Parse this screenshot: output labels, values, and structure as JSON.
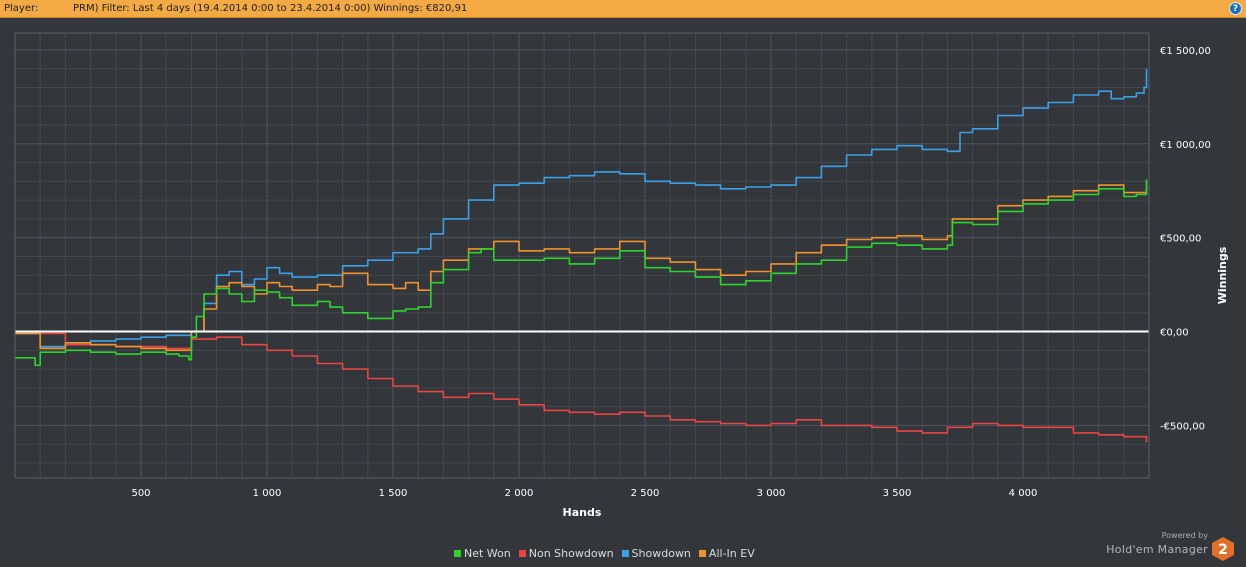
{
  "header": {
    "player_label": "Player:",
    "filter_text": "PRM) Filter: Last 4 days (19.4.2014 0:00 to 23.4.2014 0:00) Winnings: €820,91",
    "help_label": "?"
  },
  "branding": {
    "powered_by": "Powered by",
    "product_name": "Hold'em Manager",
    "logo_digit": "2"
  },
  "colors": {
    "background": "#33373c",
    "header": "#f3a944",
    "grid": "#50555b",
    "zero_line": "#ffffff"
  },
  "chart_data": {
    "type": "line",
    "title": "",
    "xlabel": "Hands",
    "ylabel": "Winnings",
    "xlim": [
      0,
      4500
    ],
    "ylim": [
      -780,
      1590
    ],
    "grid": true,
    "legend_position": "bottom-center",
    "x_ticks": [
      500,
      1000,
      1500,
      2000,
      2500,
      3000,
      3500,
      4000
    ],
    "x_tick_labels": [
      "500",
      "1 000",
      "1 500",
      "2 000",
      "2 500",
      "3 000",
      "3 500",
      "4 000"
    ],
    "y_ticks": [
      1500,
      1000,
      500,
      0,
      -500
    ],
    "y_tick_labels": [
      "€1 500,00",
      "€1 000,00",
      "€500,00",
      "€0,00",
      "-€500,00"
    ],
    "series": [
      {
        "name": "Net Won",
        "color": "#2ed42e",
        "x": [
          0,
          80,
          100,
          200,
          300,
          400,
          500,
          600,
          650,
          690,
          700,
          720,
          750,
          800,
          850,
          900,
          950,
          1000,
          1050,
          1100,
          1200,
          1250,
          1300,
          1400,
          1500,
          1550,
          1600,
          1650,
          1700,
          1800,
          1850,
          1900,
          2000,
          2100,
          2200,
          2300,
          2400,
          2500,
          2600,
          2700,
          2800,
          2900,
          3000,
          3100,
          3200,
          3300,
          3400,
          3500,
          3600,
          3700,
          3720,
          3800,
          3900,
          4000,
          4100,
          4200,
          4300,
          4400,
          4450,
          4490
        ],
        "y": [
          -140,
          -180,
          -110,
          -100,
          -110,
          -120,
          -110,
          -120,
          -130,
          -150,
          -30,
          80,
          200,
          230,
          200,
          160,
          220,
          210,
          180,
          140,
          160,
          130,
          100,
          70,
          110,
          120,
          130,
          260,
          330,
          420,
          440,
          380,
          380,
          390,
          360,
          390,
          430,
          340,
          320,
          290,
          250,
          270,
          310,
          360,
          380,
          450,
          470,
          460,
          440,
          460,
          580,
          570,
          640,
          680,
          700,
          730,
          760,
          720,
          730,
          810
        ]
      },
      {
        "name": "Non Showdown",
        "color": "#e84545",
        "x": [
          0,
          200,
          400,
          600,
          700,
          800,
          900,
          1000,
          1100,
          1200,
          1300,
          1400,
          1500,
          1600,
          1700,
          1800,
          1900,
          2000,
          2100,
          2200,
          2300,
          2400,
          2500,
          2600,
          2700,
          2800,
          2900,
          3000,
          3100,
          3200,
          3300,
          3400,
          3500,
          3600,
          3700,
          3800,
          3900,
          4000,
          4100,
          4200,
          4300,
          4400,
          4490
        ],
        "y": [
          -10,
          -70,
          -80,
          -90,
          -40,
          -30,
          -70,
          -100,
          -130,
          -170,
          -200,
          -250,
          -290,
          -320,
          -350,
          -330,
          -360,
          -390,
          -420,
          -430,
          -440,
          -430,
          -450,
          -470,
          -480,
          -490,
          -500,
          -490,
          -470,
          -500,
          -500,
          -510,
          -530,
          -540,
          -510,
          -490,
          -500,
          -510,
          -510,
          -540,
          -550,
          -560,
          -590
        ]
      },
      {
        "name": "Showdown",
        "color": "#3ba0e6",
        "x": [
          0,
          100,
          200,
          300,
          400,
          500,
          600,
          700,
          750,
          800,
          850,
          900,
          950,
          1000,
          1050,
          1100,
          1200,
          1300,
          1400,
          1500,
          1600,
          1650,
          1700,
          1800,
          1900,
          2000,
          2100,
          2200,
          2300,
          2400,
          2500,
          2600,
          2700,
          2800,
          2900,
          3000,
          3100,
          3200,
          3300,
          3400,
          3500,
          3600,
          3700,
          3750,
          3800,
          3900,
          4000,
          4100,
          4200,
          4300,
          4350,
          4400,
          4450,
          4480,
          4490
        ],
        "y": [
          -10,
          -80,
          -60,
          -50,
          -40,
          -30,
          -20,
          0,
          150,
          300,
          320,
          250,
          280,
          340,
          310,
          290,
          300,
          350,
          380,
          420,
          440,
          520,
          600,
          700,
          780,
          790,
          820,
          830,
          850,
          840,
          800,
          790,
          780,
          760,
          770,
          780,
          820,
          880,
          940,
          970,
          990,
          970,
          960,
          1060,
          1080,
          1150,
          1190,
          1220,
          1260,
          1280,
          1240,
          1250,
          1270,
          1300,
          1400
        ]
      },
      {
        "name": "All-In EV",
        "color": "#f0922e",
        "x": [
          0,
          100,
          200,
          300,
          400,
          500,
          600,
          690,
          700,
          750,
          800,
          850,
          900,
          950,
          1000,
          1050,
          1100,
          1200,
          1250,
          1300,
          1400,
          1500,
          1550,
          1600,
          1650,
          1700,
          1800,
          1900,
          2000,
          2100,
          2200,
          2300,
          2400,
          2500,
          2600,
          2700,
          2800,
          2900,
          3000,
          3100,
          3200,
          3300,
          3400,
          3500,
          3600,
          3700,
          3720,
          3800,
          3900,
          4000,
          4100,
          4200,
          4300,
          4400,
          4450,
          4490
        ],
        "y": [
          -10,
          -90,
          -60,
          -70,
          -80,
          -90,
          -100,
          -100,
          0,
          120,
          240,
          260,
          240,
          200,
          260,
          240,
          220,
          250,
          240,
          310,
          250,
          230,
          260,
          220,
          320,
          380,
          440,
          480,
          430,
          440,
          420,
          440,
          480,
          390,
          370,
          330,
          300,
          320,
          360,
          420,
          460,
          490,
          500,
          510,
          490,
          510,
          600,
          600,
          670,
          700,
          720,
          750,
          780,
          740,
          740,
          800
        ]
      }
    ]
  }
}
